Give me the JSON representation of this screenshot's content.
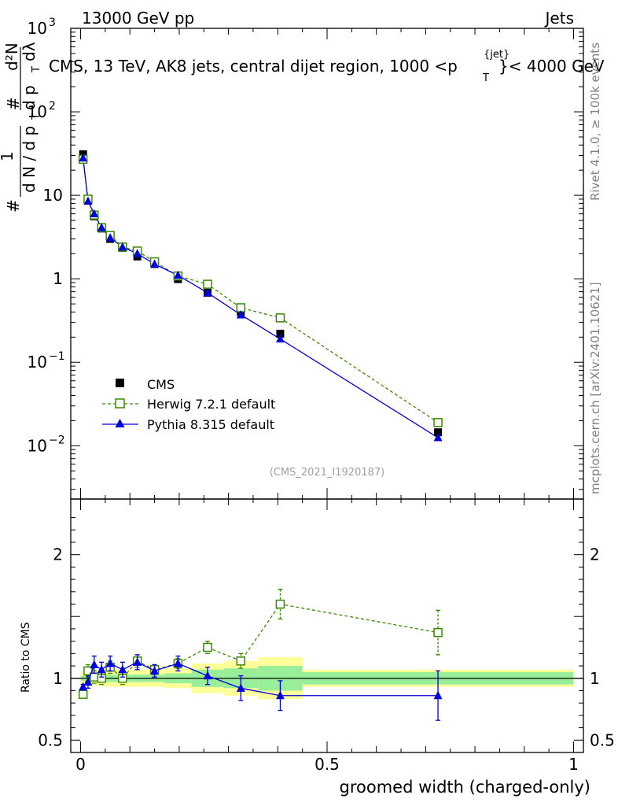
{
  "header": {
    "left": "13000 GeV pp",
    "right": "Jets",
    "title_main": "CMS, 13 TeV, AK8 jets, central dijet region, 1000 <p",
    "title_sup": "{jet}",
    "title_sub": "T",
    "title_tail": "}< 4000 GeV"
  },
  "side": {
    "rivet": "Rivet 4.1.0, ≥ 100k events",
    "mcplots": "mcplots.cern.ch [arXiv:2401.10621]"
  },
  "watermark": "(CMS_2021_I1920187)",
  "ylabel_main": {
    "hash1": "#",
    "one": "1",
    "dN": "d N / d p",
    "T1": "T",
    "hash2": "#",
    "dpT": "d p",
    "T2": "T",
    "d2N": "d²N",
    "dlam": "dλ"
  },
  "ylabel_ratio": "Ratio to CMS",
  "xlabel": "groomed width (charged-only)",
  "main_yticks": [
    {
      "v": 0.01,
      "base": "10",
      "exp": "−2"
    },
    {
      "v": 0.1,
      "base": "10",
      "exp": "−1"
    },
    {
      "v": 1,
      "base": "1",
      "exp": ""
    },
    {
      "v": 10,
      "base": "10",
      "exp": ""
    },
    {
      "v": 100,
      "base": "10",
      "exp": "2"
    },
    {
      "v": 1000,
      "base": "10",
      "exp": "3"
    }
  ],
  "ratio_yticks": [
    {
      "v": 0.5,
      "label": "0.5"
    },
    {
      "v": 1,
      "label": "1"
    },
    {
      "v": 2,
      "label": "2"
    }
  ],
  "xticks": [
    {
      "v": 0,
      "label": "0"
    },
    {
      "v": 0.5,
      "label": "0.5"
    },
    {
      "v": 1,
      "label": "1"
    }
  ],
  "chart_data": {
    "type": "scatter",
    "title": "CMS, 13 TeV, AK8 jets, central dijet region, 1000 <pT{jet}< 4000 GeV",
    "xlabel": "groomed width (charged-only)",
    "ylabel": "1/N dN/dpT d²N/dpT dλ",
    "xlim": [
      -0.02,
      1.02
    ],
    "ylim_main": [
      0.0023,
      1000
    ],
    "ylim_ratio": [
      0.4,
      2.45
    ],
    "yscale": "log",
    "bins": [
      {
        "lo": 0.0,
        "hi": 0.01
      },
      {
        "lo": 0.01,
        "hi": 0.02
      },
      {
        "lo": 0.02,
        "hi": 0.035
      },
      {
        "lo": 0.035,
        "hi": 0.05
      },
      {
        "lo": 0.05,
        "hi": 0.07
      },
      {
        "lo": 0.07,
        "hi": 0.1
      },
      {
        "lo": 0.1,
        "hi": 0.13
      },
      {
        "lo": 0.13,
        "hi": 0.17
      },
      {
        "lo": 0.17,
        "hi": 0.225
      },
      {
        "lo": 0.225,
        "hi": 0.29
      },
      {
        "lo": 0.29,
        "hi": 0.36
      },
      {
        "lo": 0.36,
        "hi": 0.45
      },
      {
        "lo": 0.45,
        "hi": 1.0
      }
    ],
    "x": [
      0.005,
      0.015,
      0.0275,
      0.0425,
      0.06,
      0.085,
      0.115,
      0.15,
      0.1975,
      0.2575,
      0.325,
      0.405,
      0.725
    ],
    "band_inner": [
      0.02,
      0.02,
      0.02,
      0.02,
      0.03,
      0.03,
      0.03,
      0.03,
      0.04,
      0.07,
      0.08,
      0.1,
      0.05
    ],
    "band_outer": [
      0.05,
      0.05,
      0.06,
      0.06,
      0.07,
      0.07,
      0.07,
      0.07,
      0.08,
      0.12,
      0.14,
      0.17,
      0.07
    ],
    "series": [
      {
        "name": "CMS",
        "style": "data",
        "color": "#000000",
        "values": [
          31,
          8.8,
          5.6,
          4.0,
          3.0,
          2.35,
          1.85,
          1.5,
          0.99,
          0.68,
          0.4,
          0.22,
          0.0145
        ]
      },
      {
        "name": "Herwig 7.2.1 default",
        "style": "dashed-open-square",
        "color": "#3a8a00",
        "values": [
          27,
          9.0,
          5.8,
          4.1,
          3.3,
          2.4,
          2.15,
          1.6,
          1.08,
          0.86,
          0.45,
          0.34,
          0.019
        ],
        "ratio": [
          0.87,
          1.06,
          1.01,
          1.0,
          1.09,
          1.0,
          1.14,
          1.07,
          1.12,
          1.25,
          1.14,
          1.6,
          1.37
        ],
        "ratio_err": [
          0.03,
          0.05,
          0.05,
          0.05,
          0.05,
          0.05,
          0.05,
          0.04,
          0.04,
          0.05,
          0.06,
          0.12,
          0.18
        ]
      },
      {
        "name": "Pythia 8.315 default",
        "style": "solid-triangle",
        "color": "#0000dd",
        "values": [
          28,
          8.5,
          6.0,
          4.1,
          3.1,
          2.4,
          2.0,
          1.5,
          1.1,
          0.68,
          0.37,
          0.19,
          0.0125
        ],
        "ratio": [
          0.93,
          0.97,
          1.11,
          1.07,
          1.12,
          1.07,
          1.13,
          1.06,
          1.12,
          1.02,
          0.92,
          0.86,
          0.86
        ],
        "ratio_err": [
          0.02,
          0.05,
          0.07,
          0.06,
          0.06,
          0.06,
          0.06,
          0.05,
          0.06,
          0.07,
          0.1,
          0.12,
          0.2
        ]
      }
    ]
  }
}
